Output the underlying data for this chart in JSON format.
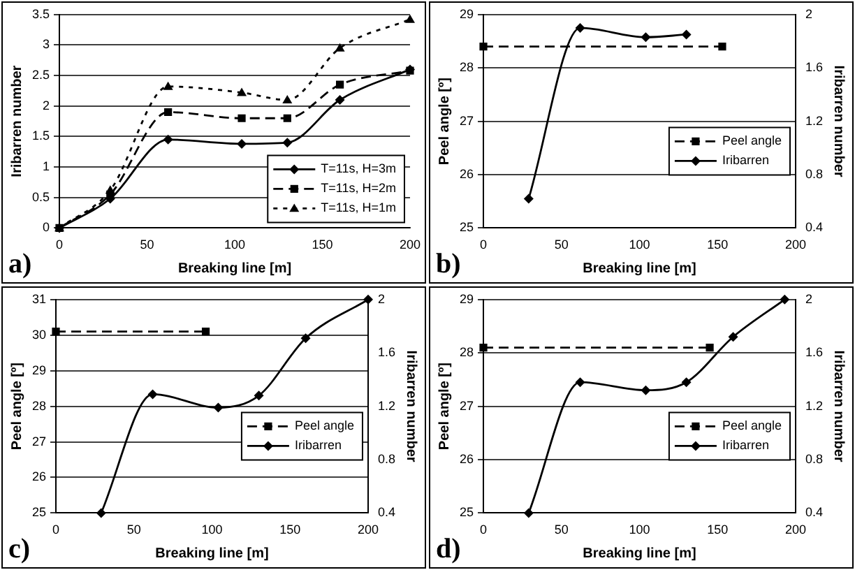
{
  "chart_data": [
    {
      "type": "line",
      "xlabel": "Breaking line [m]",
      "ylabel": "Iribarren number",
      "x": [
        0,
        29,
        62,
        104,
        130,
        160,
        200
      ],
      "xlim": [
        0,
        200
      ],
      "xticks": [
        0,
        50,
        100,
        150,
        200
      ],
      "ylim": [
        0,
        3.5
      ],
      "yticks": [
        0,
        0.5,
        1,
        1.5,
        2,
        2.5,
        3,
        3.5
      ],
      "grid": "y",
      "legend": "bottom right",
      "annotations": [
        "a)"
      ],
      "series": [
        {
          "name": "T=11s, H=3m",
          "color": "#000000",
          "marker": "diamond",
          "line_style": "solid",
          "values": [
            0,
            0.48,
            1.45,
            1.38,
            1.4,
            2.1,
            2.6
          ]
        },
        {
          "name": "T=11s, H=2m",
          "color": "#000000",
          "marker": "square",
          "line_style": "dashed",
          "values": [
            0,
            0.55,
            1.9,
            1.8,
            1.8,
            2.35,
            2.58
          ]
        },
        {
          "name": "T=11s, H=1m",
          "color": "#000000",
          "marker": "triangle",
          "line_style": "dotted",
          "values": [
            0,
            0.62,
            2.32,
            2.22,
            2.1,
            2.95,
            3.42
          ]
        }
      ]
    },
    {
      "type": "line",
      "xlabel": "Breaking line [m]",
      "ylabel": "Peel angle [º]",
      "y2label": "Iribarren number",
      "xlim": [
        0,
        200
      ],
      "xticks": [
        0,
        50,
        100,
        150,
        200
      ],
      "ylim": [
        25,
        29
      ],
      "yticks": [
        25,
        26,
        27,
        28,
        29
      ],
      "y2lim": [
        0.4,
        2
      ],
      "y2ticks": [
        0.4,
        0.8,
        1.2,
        1.6,
        2
      ],
      "grid": "y",
      "legend": "right",
      "annotations": [
        "b)"
      ],
      "series": [
        {
          "name": "Peel angle",
          "color": "#000000",
          "marker": "square",
          "line_style": "dashed",
          "x": [
            0,
            153
          ],
          "values": [
            28.4,
            28.4
          ]
        },
        {
          "name": "Iribarren",
          "color": "#000000",
          "marker": "diamond",
          "line_style": "solid",
          "axis": "y2",
          "x": [
            29,
            62,
            104,
            130
          ],
          "values": [
            0.62,
            1.9,
            1.83,
            1.85
          ]
        }
      ]
    },
    {
      "type": "line",
      "xlabel": "Breaking line [m]",
      "ylabel": "Peel angle [º]",
      "y2label": "Iribarren number",
      "xlim": [
        0,
        200
      ],
      "xticks": [
        0,
        50,
        100,
        150,
        200
      ],
      "ylim": [
        25,
        31
      ],
      "yticks": [
        25,
        26,
        27,
        28,
        29,
        30,
        31
      ],
      "y2lim": [
        0.4,
        2
      ],
      "y2ticks": [
        0.4,
        0.8,
        1.2,
        1.6,
        2
      ],
      "grid": "y",
      "legend": "right",
      "annotations": [
        "c)"
      ],
      "series": [
        {
          "name": "Peel angle",
          "color": "#000000",
          "marker": "square",
          "line_style": "dashed",
          "x": [
            0,
            96
          ],
          "values": [
            30.1,
            30.1
          ]
        },
        {
          "name": "Iribarren",
          "color": "#000000",
          "marker": "diamond",
          "line_style": "solid",
          "axis": "y2",
          "x": [
            29,
            62,
            104,
            130,
            160,
            200
          ],
          "values": [
            0.4,
            1.29,
            1.19,
            1.28,
            1.71,
            2.0
          ]
        }
      ]
    },
    {
      "type": "line",
      "xlabel": "Breaking line [m]",
      "ylabel": "Peel angle [º]",
      "y2label": "Iribarren number",
      "xlim": [
        0,
        200
      ],
      "xticks": [
        0,
        50,
        100,
        150,
        200
      ],
      "ylim": [
        25,
        29
      ],
      "yticks": [
        25,
        26,
        27,
        28,
        29
      ],
      "y2lim": [
        0.4,
        2
      ],
      "y2ticks": [
        0.4,
        0.8,
        1.2,
        1.6,
        2
      ],
      "grid": "y",
      "legend": "right",
      "annotations": [
        "d)"
      ],
      "series": [
        {
          "name": "Peel angle",
          "color": "#000000",
          "marker": "square",
          "line_style": "dashed",
          "x": [
            0,
            145
          ],
          "values": [
            28.1,
            28.1
          ]
        },
        {
          "name": "Iribarren",
          "color": "#000000",
          "marker": "diamond",
          "line_style": "solid",
          "axis": "y2",
          "x": [
            29,
            62,
            104,
            130,
            160,
            193
          ],
          "values": [
            0.4,
            1.38,
            1.32,
            1.38,
            1.72,
            2.0
          ]
        }
      ]
    }
  ]
}
